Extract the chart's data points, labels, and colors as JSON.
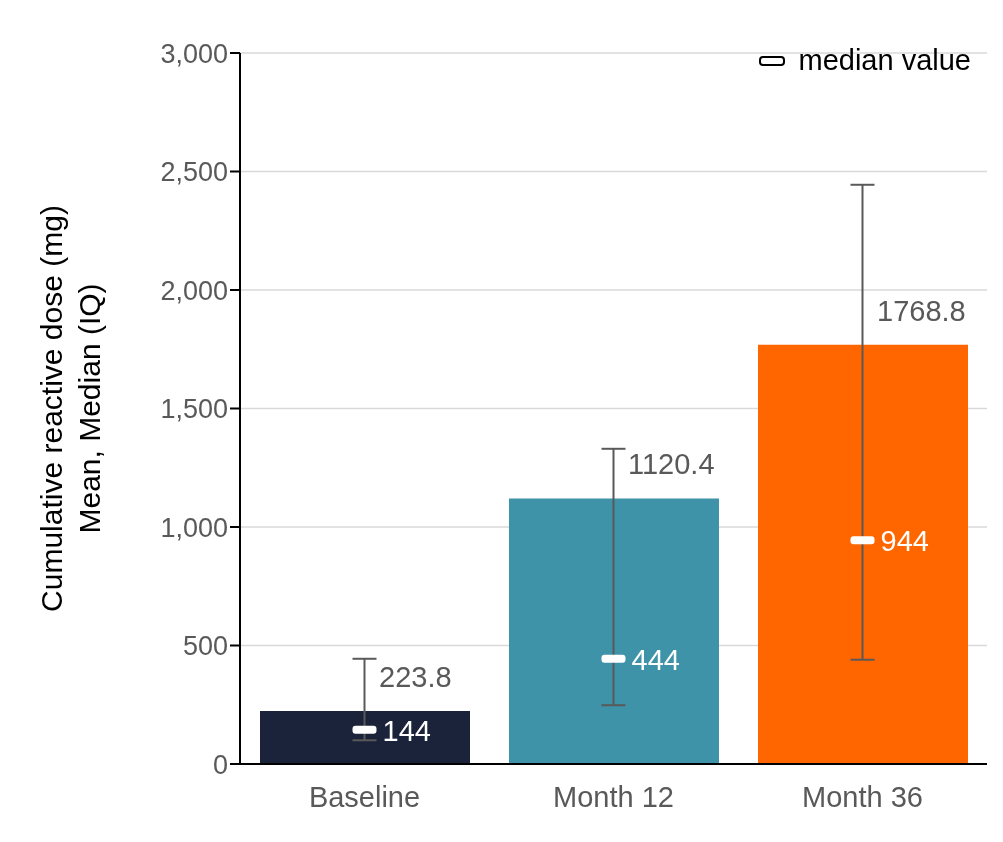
{
  "chart_data": {
    "type": "bar",
    "ylabel": "Cumulative reactive dose (mg)\nMean, Median (IQ)",
    "categories": [
      "Baseline",
      "Month 12",
      "Month 36"
    ],
    "series": [
      {
        "colors": [
          "#1a2339",
          "#3f93a8",
          "#ff6600"
        ],
        "values": [
          223.8,
          1120.4,
          1768.8
        ],
        "value_labels": [
          "223.8",
          "1120.4",
          "1768.8"
        ]
      },
      {
        "type": "scatter",
        "name": "median value",
        "color": "#ffffff",
        "values": [
          144,
          444,
          944
        ],
        "value_labels": [
          "144",
          "444",
          "944"
        ],
        "errors": [
          [
            100,
            444
          ],
          [
            248,
            1330
          ],
          [
            440,
            2444
          ]
        ]
      }
    ],
    "ylim": [
      0,
      3000
    ],
    "yticks": [
      {
        "value": 0,
        "label": "0"
      },
      {
        "value": 500,
        "label": "500"
      },
      {
        "value": 1000,
        "label": "1,000"
      },
      {
        "value": 1500,
        "label": "1,500"
      },
      {
        "value": 2000,
        "label": "2,000"
      },
      {
        "value": 2500,
        "label": "2,500"
      },
      {
        "value": 3000,
        "label": "3,000"
      }
    ],
    "grid": "y",
    "legend": "top right"
  }
}
